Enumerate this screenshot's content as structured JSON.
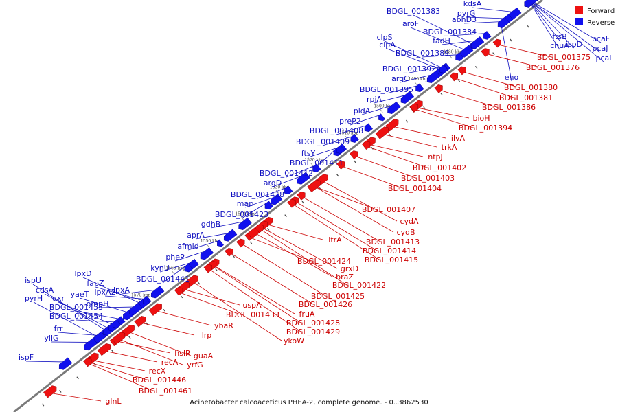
{
  "caption": "Acinetobacter calcoaceticus PHEA-2, complete genome. - 0..3862530",
  "legend": [
    {
      "label": "Forward",
      "color": "#ee1111"
    },
    {
      "label": "Reverse",
      "color": "#1111ee"
    }
  ],
  "ticks": [
    "1480 kbp",
    "1490 kbp",
    "1500 kbp",
    "1510 kbp",
    "1520 kbp",
    "1530 kbp",
    "1540 kbp",
    "1550 kbp",
    "1560 kbp",
    "1570 kbp"
  ],
  "forward_genes": [
    "BDGL_001375",
    "BDGL_001376",
    "BDGL_001380",
    "BDGL_001381",
    "BDGL_001386",
    "bioH",
    "BDGL_001394",
    "ilvA",
    "trkA",
    "ntpJ",
    "BDGL_001402",
    "BDGL_001403",
    "BDGL_001404",
    "BDGL_001407",
    "cydA",
    "cydB",
    "BDGL_001413",
    "BDGL_001414",
    "BDGL_001415",
    "ltrA",
    "grxD",
    "BDGL_001424",
    "braZ",
    "BDGL_001422",
    "BDGL_001425",
    "BDGL_001426",
    "fruA",
    "BDGL_001428",
    "BDGL_001429",
    "ykoW",
    "uspA",
    "BDGL_001433",
    "ybaR",
    "lrp",
    "hslR",
    "guaA",
    "yrfG",
    "recA",
    "recX",
    "BDGL_001446",
    "BDGL_001461",
    "glnL"
  ],
  "reverse_genes": [
    "kdsA",
    "pyrG",
    "abhD3",
    "BDGL_001383",
    "aroF",
    "BDGL_001384",
    "fadH",
    "clpS",
    "clpA",
    "BDGL_001389",
    "BDGL_001392",
    "argC",
    "BDGL_001395",
    "rpiA",
    "pldA",
    "preP2",
    "BDGL_001408",
    "BDGL_001409",
    "ftsY",
    "BDGL_001411",
    "BDGL_001412",
    "argD",
    "BDGL_001418",
    "map",
    "BDGL_001423",
    "gdhB",
    "aprA",
    "afmid",
    "pheP",
    "kynU",
    "lpxD",
    "fabZ",
    "lpxA2",
    "lpxA",
    "BDGL_001441",
    "yaeT",
    "ompH",
    "ispU",
    "cdsA",
    "pyrH",
    "dxr",
    "BDGL_001453",
    "BDGL_001454",
    "frr",
    "yliG",
    "ispF",
    "ftsB",
    "chuA",
    "ispD",
    "pcaF",
    "pcaJ",
    "pcaI",
    "eno"
  ]
}
